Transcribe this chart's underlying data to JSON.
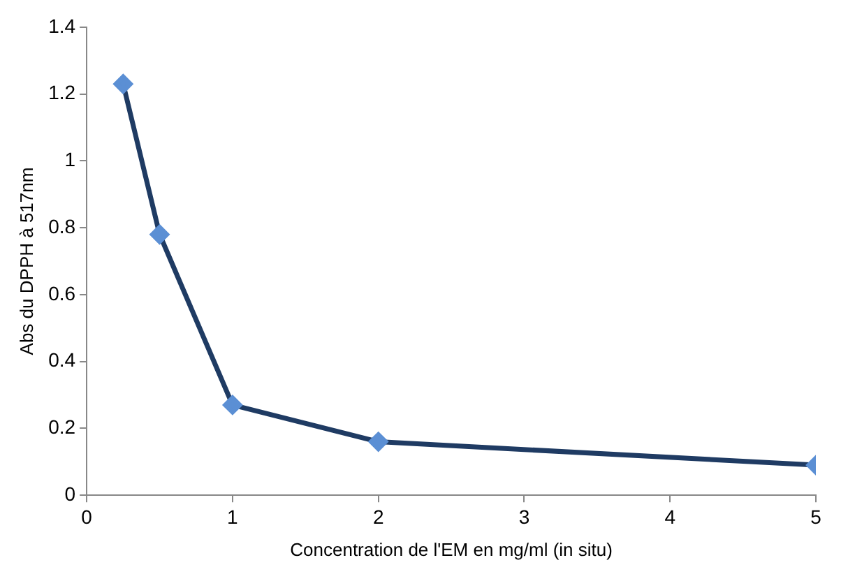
{
  "chart_data": {
    "type": "line",
    "xlabel": "Concentration de l'EM en mg/ml (in situ)",
    "ylabel": "Abs du DPPH à 517nm",
    "x": [
      0.25,
      0.5,
      1,
      2,
      5
    ],
    "series": [
      {
        "color": "#1f3b63",
        "values": [
          1.23,
          0.78,
          0.27,
          0.16,
          0.09
        ]
      }
    ],
    "xlim": [
      0,
      5
    ],
    "xticks": [
      0,
      1,
      2,
      3,
      4,
      5
    ],
    "ylim": [
      0,
      1.4
    ],
    "yticks": [
      0,
      0.2,
      0.4,
      0.6,
      0.8,
      1,
      1.2,
      1.4
    ],
    "grid": false,
    "legend": false,
    "marker": "diamond",
    "line_style": "solid"
  }
}
